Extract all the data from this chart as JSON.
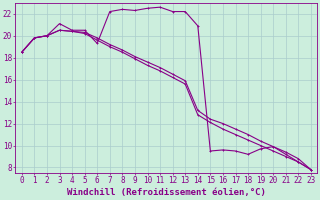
{
  "xlabel": "Windchill (Refroidissement éolien,°C)",
  "background_color": "#cceedd",
  "grid_color": "#aacccc",
  "line_color": "#880088",
  "xlim": [
    -0.5,
    23.5
  ],
  "ylim": [
    7.5,
    23.0
  ],
  "yticks": [
    8,
    10,
    12,
    14,
    16,
    18,
    20,
    22
  ],
  "xticks": [
    0,
    1,
    2,
    3,
    4,
    5,
    6,
    7,
    8,
    9,
    10,
    11,
    12,
    13,
    14,
    15,
    16,
    17,
    18,
    19,
    20,
    21,
    22,
    23
  ],
  "line1_x": [
    0,
    1,
    2,
    3,
    4,
    5,
    6,
    7,
    8,
    9,
    10,
    11,
    12,
    13,
    14,
    15,
    16,
    17,
    18,
    19,
    20,
    21,
    22,
    23
  ],
  "line1_y": [
    18.5,
    19.8,
    20.0,
    21.1,
    20.5,
    20.5,
    19.3,
    22.2,
    22.4,
    22.3,
    22.5,
    22.6,
    22.2,
    22.2,
    20.9,
    9.5,
    9.6,
    9.5,
    9.2,
    9.7,
    9.9,
    9.2,
    8.5,
    7.8
  ],
  "line2_x": [
    0,
    1,
    2,
    3,
    4,
    5,
    6,
    7,
    8,
    9,
    10,
    11,
    12,
    13,
    14,
    15,
    16,
    17,
    18,
    19,
    20,
    21,
    22,
    23
  ],
  "line2_y": [
    18.5,
    19.8,
    20.0,
    20.5,
    20.4,
    20.3,
    19.8,
    19.2,
    18.7,
    18.1,
    17.6,
    17.1,
    16.5,
    15.9,
    13.2,
    12.4,
    12.0,
    11.5,
    11.0,
    10.4,
    9.9,
    9.4,
    8.8,
    7.8
  ],
  "line3_x": [
    0,
    1,
    2,
    3,
    4,
    5,
    6,
    7,
    8,
    9,
    10,
    11,
    12,
    13,
    14,
    15,
    16,
    17,
    18,
    19,
    20,
    21,
    22,
    23
  ],
  "line3_y": [
    18.5,
    19.8,
    20.0,
    20.5,
    20.4,
    20.2,
    19.6,
    19.0,
    18.5,
    17.9,
    17.3,
    16.8,
    16.2,
    15.6,
    12.8,
    12.1,
    11.5,
    11.0,
    10.5,
    10.0,
    9.5,
    9.0,
    8.5,
    7.8
  ],
  "xlabel_fontsize": 6.5,
  "tick_fontsize": 5.5,
  "linewidth": 0.8,
  "markersize": 2.0,
  "markeredgewidth": 0.7
}
